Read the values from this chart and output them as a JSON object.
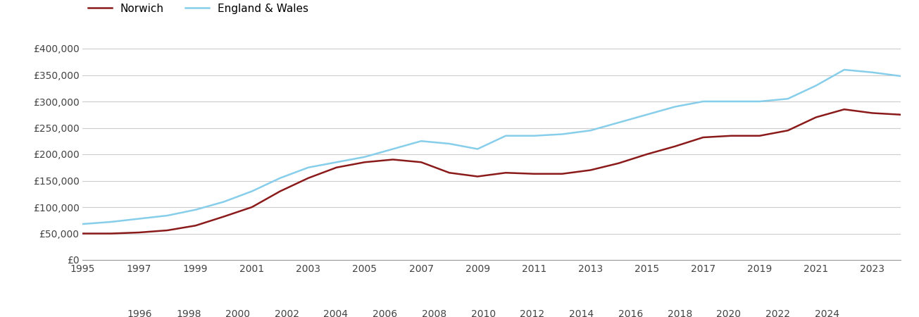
{
  "years": [
    1995,
    1996,
    1997,
    1998,
    1999,
    2000,
    2001,
    2002,
    2003,
    2004,
    2005,
    2006,
    2007,
    2008,
    2009,
    2010,
    2011,
    2012,
    2013,
    2014,
    2015,
    2016,
    2017,
    2018,
    2019,
    2020,
    2021,
    2022,
    2023,
    2024
  ],
  "norwich": [
    50000,
    50000,
    52000,
    56000,
    65000,
    82000,
    100000,
    130000,
    155000,
    175000,
    185000,
    190000,
    185000,
    165000,
    158000,
    165000,
    163000,
    163000,
    170000,
    183000,
    200000,
    215000,
    232000,
    235000,
    235000,
    245000,
    270000,
    285000,
    278000,
    275000
  ],
  "england_wales": [
    68000,
    72000,
    78000,
    84000,
    95000,
    110000,
    130000,
    155000,
    175000,
    185000,
    195000,
    210000,
    225000,
    220000,
    210000,
    235000,
    235000,
    238000,
    245000,
    260000,
    275000,
    290000,
    300000,
    300000,
    300000,
    305000,
    330000,
    360000,
    355000,
    348000
  ],
  "norwich_color": "#8B1A1A",
  "ew_color": "#87CEEB",
  "norwich_label": "Norwich",
  "ew_label": "England & Wales",
  "ylim": [
    0,
    420000
  ],
  "yticks": [
    0,
    50000,
    100000,
    150000,
    200000,
    250000,
    300000,
    350000,
    400000
  ],
  "ytick_labels": [
    "£0",
    "£50,000",
    "£100,000",
    "£150,000",
    "£200,000",
    "£250,000",
    "£300,000",
    "£350,000",
    "£400,000"
  ],
  "grid_color": "#cccccc",
  "background_color": "#ffffff",
  "line_width": 1.8
}
